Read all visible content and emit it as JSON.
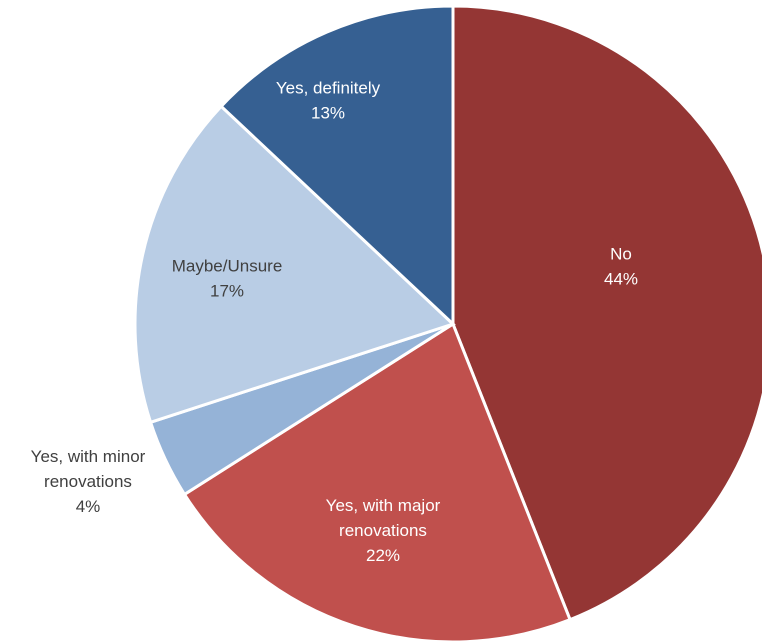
{
  "chart_data": {
    "type": "pie",
    "title": "",
    "legend": "none",
    "slices": [
      {
        "label_lines": [
          "No"
        ],
        "pct_label": "44%",
        "value": 44,
        "color": "#943634",
        "text_color": "#ffffff"
      },
      {
        "label_lines": [
          "Yes, with major",
          "renovations"
        ],
        "pct_label": "22%",
        "value": 22,
        "color": "#c0504d",
        "text_color": "#ffffff"
      },
      {
        "label_lines": [
          "Yes, with minor",
          "renovations"
        ],
        "pct_label": "4%",
        "value": 4,
        "color": "#95b3d7",
        "text_color": "#404040"
      },
      {
        "label_lines": [
          "Maybe/Unsure"
        ],
        "pct_label": "17%",
        "value": 17,
        "color": "#b9cde5",
        "text_color": "#404040"
      },
      {
        "label_lines": [
          "Yes, definitely"
        ],
        "pct_label": "13%",
        "value": 13,
        "color": "#366092",
        "text_color": "#ffffff"
      }
    ]
  }
}
